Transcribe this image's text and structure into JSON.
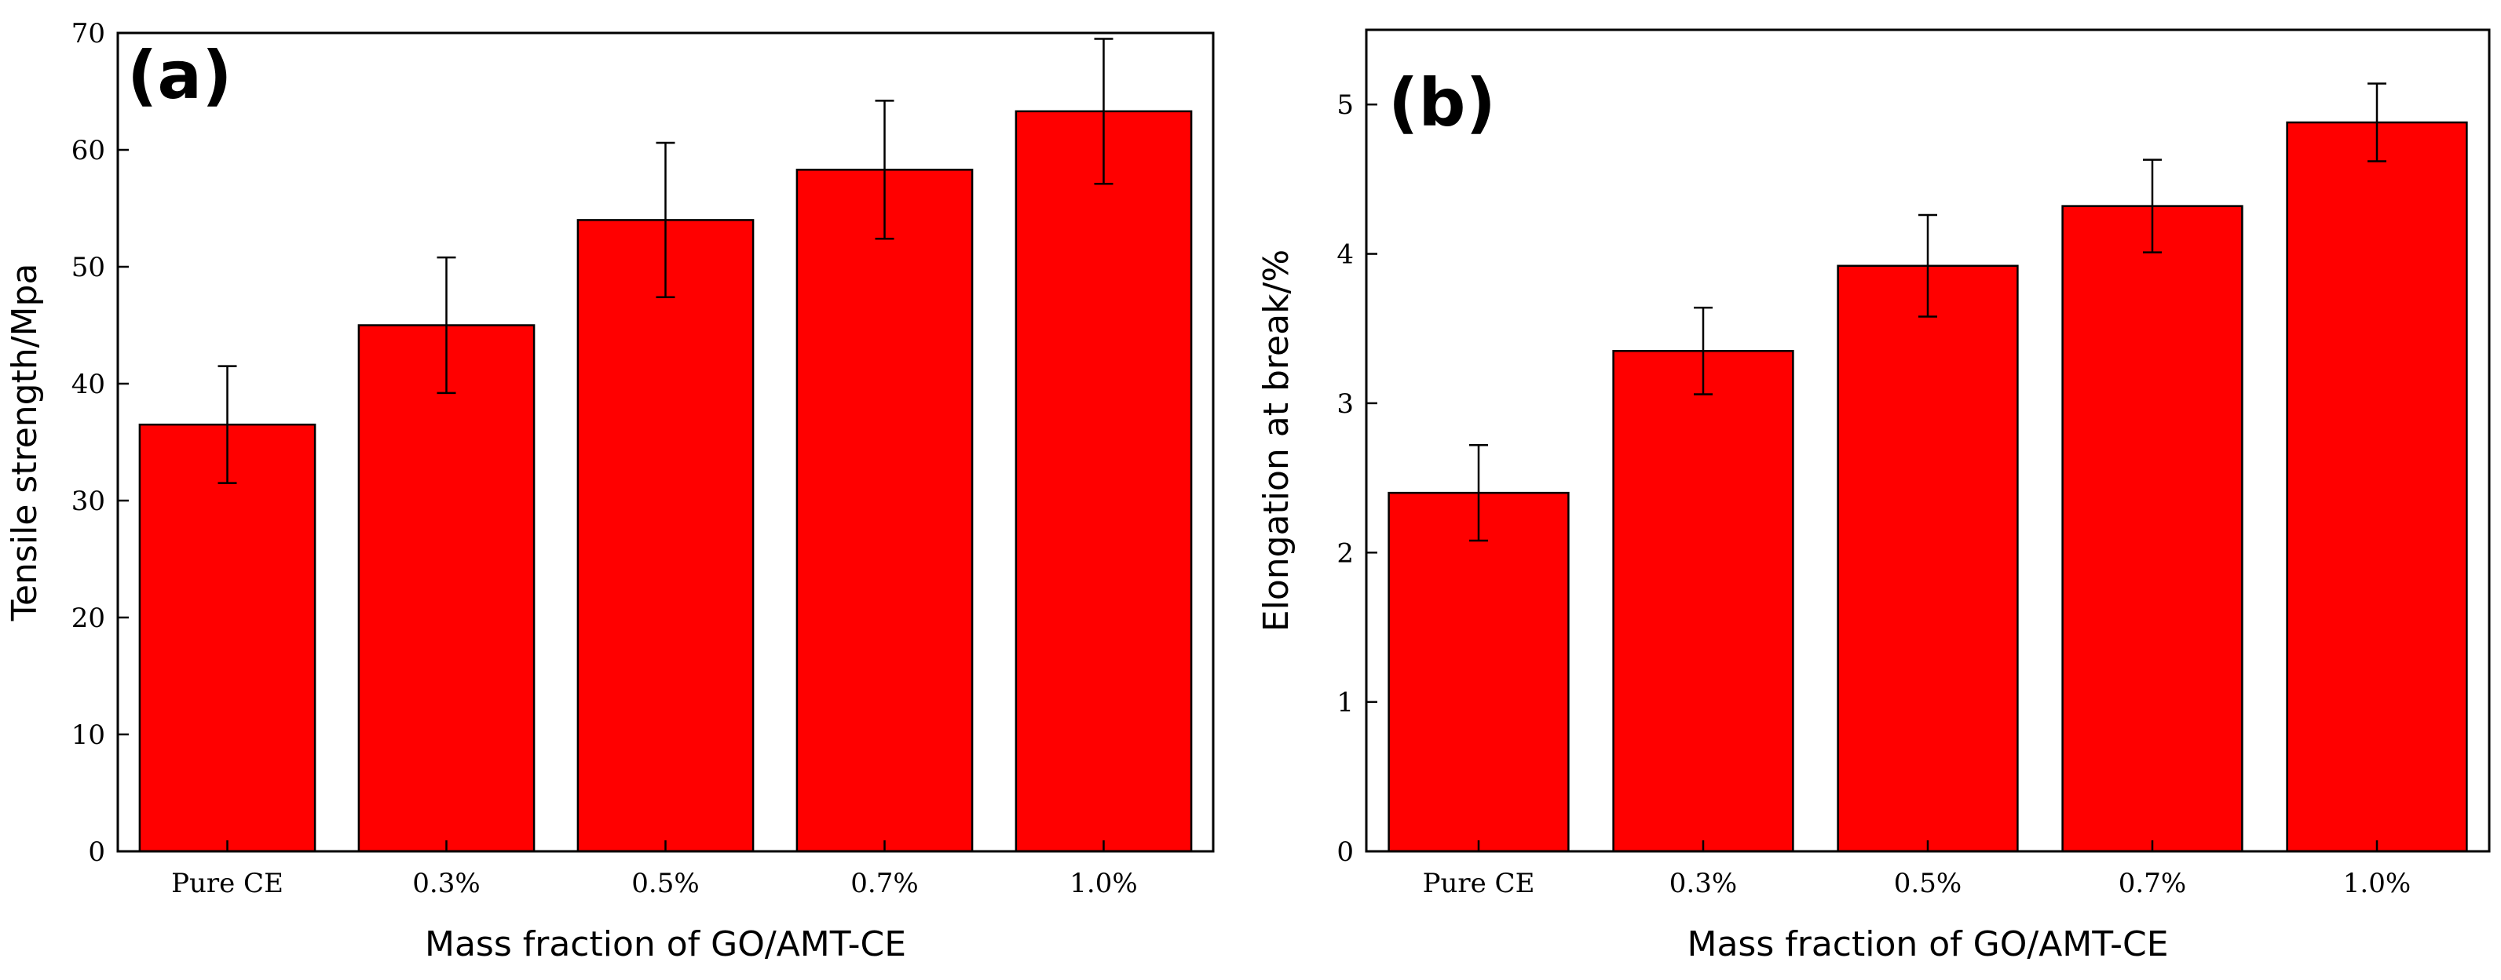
{
  "chart_data": [
    {
      "panel": "(a)",
      "type": "bar",
      "categories": [
        "Pure CE",
        "0.3%",
        "0.5%",
        "0.7%",
        "1.0%"
      ],
      "values": [
        36.5,
        45.0,
        54.0,
        58.3,
        63.3
      ],
      "errors": [
        5.0,
        5.8,
        6.6,
        5.9,
        6.2
      ],
      "xlabel": "Mass fraction of GO/AMT-CE",
      "ylabel": "Tensile strength/Mpa",
      "ylim": [
        0,
        70
      ],
      "yticks": [
        0,
        10,
        20,
        30,
        40,
        50,
        60,
        70
      ],
      "bar_color": "#ff0000",
      "grid": false
    },
    {
      "panel": "(b)",
      "type": "bar",
      "categories": [
        "Pure CE",
        "0.3%",
        "0.5%",
        "0.7%",
        "1.0%"
      ],
      "values": [
        2.4,
        3.35,
        3.92,
        4.32,
        4.88
      ],
      "errors": [
        0.32,
        0.29,
        0.34,
        0.31,
        0.26
      ],
      "xlabel": "Mass fraction of GO/AMT-CE",
      "ylabel": "Elongation at break/%",
      "ylim": [
        0,
        5.5
      ],
      "yticks": [
        0,
        1,
        2,
        3,
        4,
        5
      ],
      "bar_color": "#ff0000",
      "grid": false
    }
  ]
}
